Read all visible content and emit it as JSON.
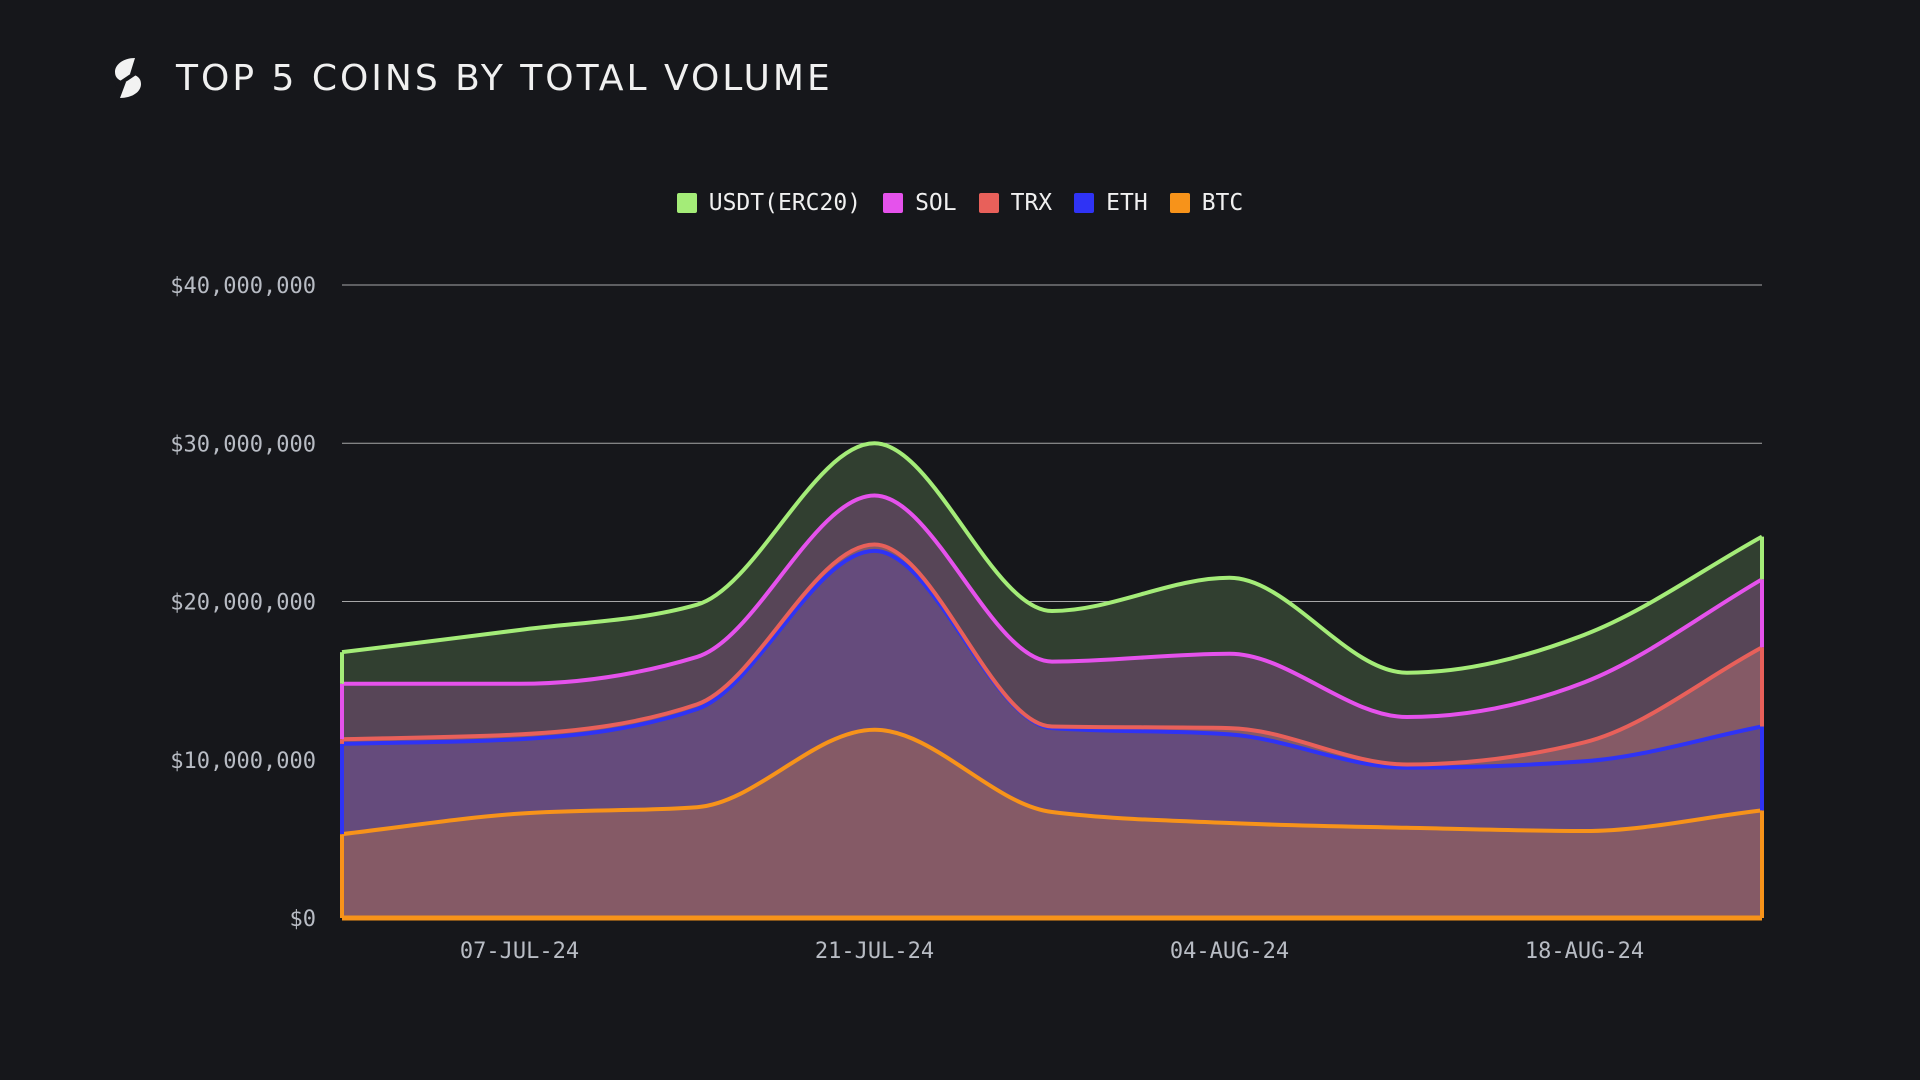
{
  "header": {
    "title": "TOP 5 COINS BY TOTAL VOLUME"
  },
  "chart_data": {
    "type": "area",
    "stacked": true,
    "title": "TOP 5 COINS BY TOTAL VOLUME",
    "xlabel": "",
    "ylabel": "",
    "ylim": [
      0,
      40000000
    ],
    "xlim": [
      "2024-06-30",
      "2024-08-25"
    ],
    "grid": true,
    "legend_position": "top-center",
    "y_ticks": [
      "$0",
      "$10,000,000",
      "$20,000,000",
      "$30,000,000",
      "$40,000,000"
    ],
    "y_tick_values": [
      0,
      10000000,
      20000000,
      30000000,
      40000000
    ],
    "x_tick_labels": [
      "07-JUL-24",
      "21-JUL-24",
      "04-AUG-24",
      "18-AUG-24"
    ],
    "x_tick_values": [
      "2024-07-07",
      "2024-07-21",
      "2024-08-04",
      "2024-08-18"
    ],
    "x": [
      "2024-06-30",
      "2024-07-07",
      "2024-07-14",
      "2024-07-21",
      "2024-07-28",
      "2024-08-04",
      "2024-08-11",
      "2024-08-18",
      "2024-08-25"
    ],
    "series": [
      {
        "name": "BTC",
        "color": "#f7931a",
        "fill": "#855a66",
        "values": [
          5300000,
          6600000,
          7000000,
          11900000,
          6700000,
          6000000,
          5700000,
          5500000,
          6800000
        ]
      },
      {
        "name": "ETH",
        "color": "#2f33f5",
        "fill": "#654b7c",
        "values": [
          5700000,
          4700000,
          6200000,
          11300000,
          5300000,
          5600000,
          3800000,
          4400000,
          5300000
        ]
      },
      {
        "name": "TRX",
        "color": "#e8605a",
        "fill": "#855a66",
        "values": [
          300000,
          300000,
          300000,
          400000,
          100000,
          400000,
          200000,
          1200000,
          5000000
        ]
      },
      {
        "name": "SOL",
        "color": "#e552ec",
        "fill": "#574557",
        "values": [
          3500000,
          3200000,
          3000000,
          3100000,
          4100000,
          4700000,
          3000000,
          3800000,
          4300000
        ]
      },
      {
        "name": "USDT(ERC20)",
        "color": "#a4ec78",
        "fill": "#313f30",
        "values": [
          2000000,
          3400000,
          3300000,
          3300000,
          3200000,
          4800000,
          2800000,
          3000000,
          2700000
        ]
      }
    ]
  }
}
